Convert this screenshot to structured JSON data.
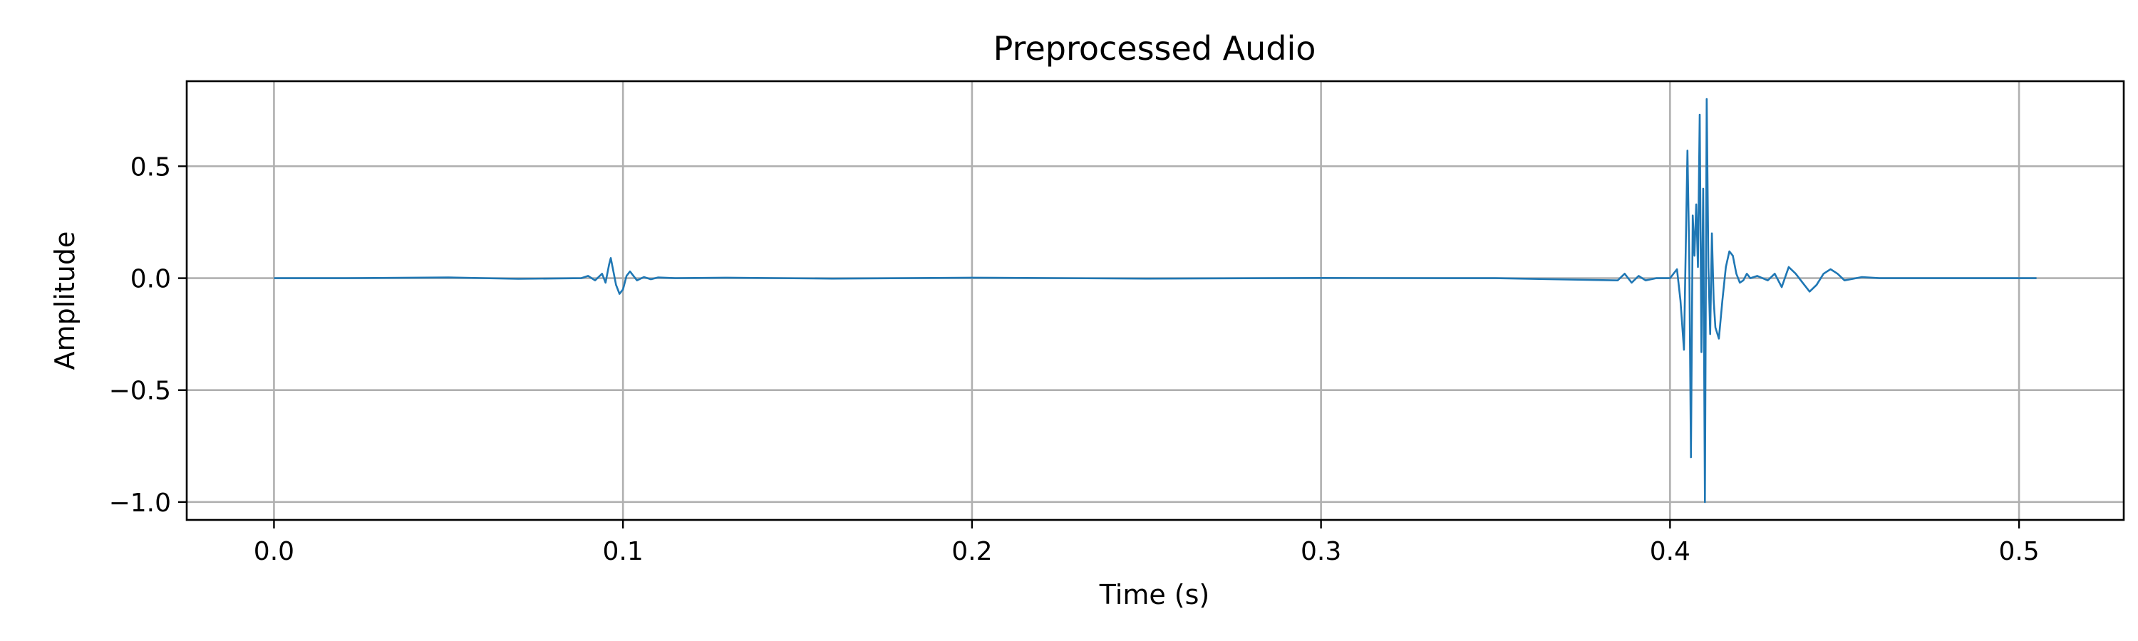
{
  "chart_data": {
    "type": "line",
    "title": "Preprocessed Audio",
    "xlabel": "Time (s)",
    "ylabel": "Amplitude",
    "xlim": [
      -0.025,
      0.53
    ],
    "ylim": [
      -1.08,
      0.88
    ],
    "grid": true,
    "legend": "none",
    "x_ticks": [
      {
        "value": 0.0,
        "label": "0.0"
      },
      {
        "value": 0.1,
        "label": "0.1"
      },
      {
        "value": 0.2,
        "label": "0.2"
      },
      {
        "value": 0.3,
        "label": "0.3"
      },
      {
        "value": 0.4,
        "label": "0.4"
      },
      {
        "value": 0.5,
        "label": "0.5"
      }
    ],
    "y_ticks": [
      {
        "value": 0.5,
        "label": "0.5"
      },
      {
        "value": 0.0,
        "label": "0.0"
      },
      {
        "value": -0.5,
        "label": "−0.5"
      },
      {
        "value": -1.0,
        "label": "−1.0"
      }
    ],
    "series": [
      {
        "color": "#1f77b4",
        "x": [
          0.0,
          0.02,
          0.05,
          0.07,
          0.088,
          0.09,
          0.092,
          0.094,
          0.095,
          0.096,
          0.0965,
          0.097,
          0.098,
          0.099,
          0.1,
          0.101,
          0.102,
          0.103,
          0.104,
          0.106,
          0.108,
          0.11,
          0.115,
          0.13,
          0.16,
          0.2,
          0.25,
          0.3,
          0.35,
          0.385,
          0.387,
          0.389,
          0.391,
          0.393,
          0.396,
          0.4,
          0.402,
          0.403,
          0.404,
          0.405,
          0.4055,
          0.406,
          0.4065,
          0.407,
          0.4075,
          0.408,
          0.4085,
          0.409,
          0.4095,
          0.41,
          0.4105,
          0.411,
          0.4115,
          0.412,
          0.4125,
          0.413,
          0.414,
          0.415,
          0.416,
          0.417,
          0.418,
          0.419,
          0.42,
          0.421,
          0.422,
          0.423,
          0.425,
          0.428,
          0.43,
          0.432,
          0.434,
          0.436,
          0.438,
          0.44,
          0.442,
          0.444,
          0.446,
          0.448,
          0.45,
          0.455,
          0.46,
          0.47,
          0.48,
          0.49,
          0.5,
          0.505
        ],
        "y": [
          0.0,
          0.0,
          0.003,
          -0.003,
          0.0,
          0.01,
          -0.01,
          0.02,
          -0.02,
          0.06,
          0.09,
          0.05,
          -0.03,
          -0.07,
          -0.05,
          0.01,
          0.03,
          0.01,
          -0.01,
          0.005,
          -0.005,
          0.003,
          0.0,
          0.002,
          -0.002,
          0.002,
          -0.002,
          0.001,
          0.0,
          -0.01,
          0.02,
          -0.02,
          0.01,
          -0.01,
          0.0,
          0.0,
          0.04,
          -0.1,
          -0.32,
          0.57,
          0.1,
          -0.8,
          0.28,
          0.1,
          0.33,
          0.05,
          0.73,
          -0.33,
          0.4,
          -1.0,
          0.8,
          0.05,
          -0.25,
          0.2,
          -0.1,
          -0.22,
          -0.27,
          -0.1,
          0.05,
          0.12,
          0.1,
          0.02,
          -0.02,
          -0.01,
          0.02,
          0.0,
          0.01,
          -0.01,
          0.02,
          -0.04,
          0.05,
          0.02,
          -0.02,
          -0.06,
          -0.03,
          0.02,
          0.04,
          0.02,
          -0.01,
          0.005,
          0.0,
          0.0,
          0.0,
          0.0,
          0.0,
          0.0
        ]
      }
    ]
  }
}
